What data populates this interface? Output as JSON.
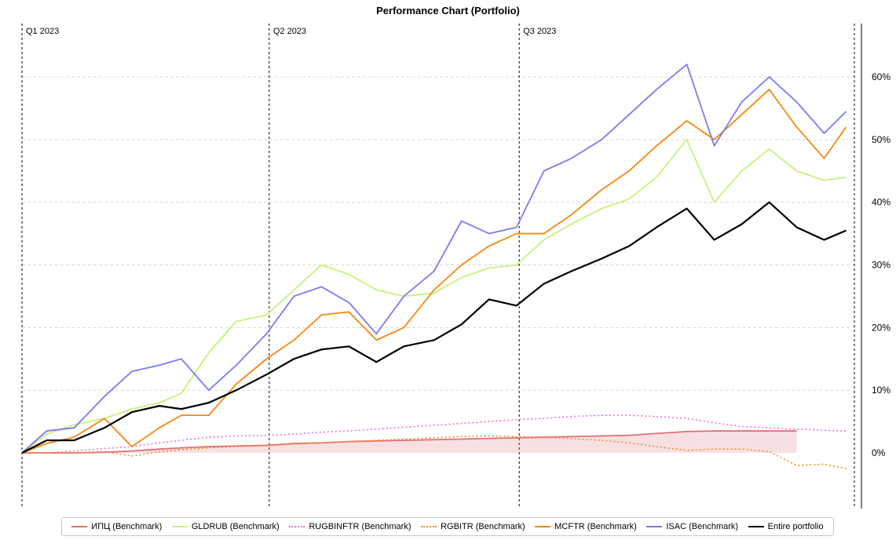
{
  "chart_data": {
    "type": "line",
    "title": "Performance Chart (Portfolio)",
    "xlabel": "",
    "ylabel": "",
    "x_range": [
      "2023-01-01",
      "2023-10-31"
    ],
    "ylim": [
      -8,
      67
    ],
    "y_axis_position": "right",
    "y_ticks": [
      {
        "value": 0,
        "label": "0%"
      },
      {
        "value": 10,
        "label": "10%"
      },
      {
        "value": 20,
        "label": "20%"
      },
      {
        "value": 30,
        "label": "30%"
      },
      {
        "value": 40,
        "label": "40%"
      },
      {
        "value": 50,
        "label": "50%"
      },
      {
        "value": 60,
        "label": "60%"
      }
    ],
    "grid": "horizontal dashed",
    "legend_position": "bottom",
    "quarter_markers": [
      {
        "date": "2023-01-01",
        "label": "Q1 2023"
      },
      {
        "date": "2023-04-01",
        "label": "Q2 2023"
      },
      {
        "date": "2023-07-01",
        "label": "Q3 2023"
      },
      {
        "date": "2023-10-31",
        "label": ""
      }
    ],
    "x": [
      "2023-01-01",
      "2023-01-10",
      "2023-01-20",
      "2023-01-31",
      "2023-02-10",
      "2023-02-20",
      "2023-02-28",
      "2023-03-10",
      "2023-03-20",
      "2023-03-31",
      "2023-04-10",
      "2023-04-20",
      "2023-04-30",
      "2023-05-10",
      "2023-05-20",
      "2023-05-31",
      "2023-06-10",
      "2023-06-20",
      "2023-06-30",
      "2023-07-10",
      "2023-07-20",
      "2023-07-31",
      "2023-08-10",
      "2023-08-20",
      "2023-08-31",
      "2023-09-10",
      "2023-09-20",
      "2023-09-30",
      "2023-10-10",
      "2023-10-20",
      "2023-10-28"
    ],
    "series": [
      {
        "name": "ИПЦ (Benchmark)",
        "color": "#e0707a",
        "style": "solid",
        "fill": true,
        "values": [
          0,
          0,
          0,
          0.1,
          0.3,
          0.6,
          0.8,
          1.0,
          1.1,
          1.2,
          1.5,
          1.6,
          1.8,
          1.9,
          2.0,
          2.1,
          2.2,
          2.3,
          2.4,
          2.5,
          2.6,
          2.7,
          2.8,
          3.1,
          3.4,
          3.5,
          3.5,
          3.5,
          3.5,
          null,
          null
        ]
      },
      {
        "name": "GLDRUB (Benchmark)",
        "color": "#c6f27a",
        "style": "solid",
        "values": [
          0,
          3.0,
          4.5,
          5.5,
          7.0,
          8.0,
          9.5,
          16.0,
          21.0,
          22.0,
          26.0,
          30.0,
          28.5,
          26.0,
          25.0,
          25.5,
          28.0,
          29.5,
          30.0,
          34.0,
          36.5,
          39.0,
          40.5,
          44.0,
          50.0,
          40.0,
          45.0,
          48.5,
          45.0,
          43.5,
          44.0
        ]
      },
      {
        "name": "RUGBINFTR (Benchmark)",
        "color": "#f26be0",
        "style": "dotted",
        "values": [
          0,
          0,
          0.3,
          0.7,
          1.0,
          1.6,
          2.0,
          2.5,
          2.7,
          2.8,
          3.0,
          3.3,
          3.5,
          3.8,
          4.1,
          4.4,
          4.7,
          5.0,
          5.3,
          5.5,
          5.8,
          6.0,
          6.0,
          5.8,
          5.5,
          4.8,
          4.2,
          4.0,
          3.8,
          3.6,
          3.5
        ]
      },
      {
        "name": "RGBITR (Benchmark)",
        "color": "#f08a1c",
        "style": "dotted",
        "values": [
          0,
          0,
          0,
          0.2,
          -0.5,
          0.2,
          0.5,
          0.8,
          1.0,
          1.2,
          1.4,
          1.6,
          1.8,
          2.0,
          2.2,
          2.4,
          2.6,
          2.7,
          2.6,
          2.5,
          2.3,
          2.0,
          1.6,
          1.0,
          0.4,
          0.6,
          0.6,
          0.2,
          -2.0,
          -1.8,
          -2.5
        ]
      },
      {
        "name": "MCFTR (Benchmark)",
        "color": "#f5870f",
        "style": "solid",
        "values": [
          0,
          1.5,
          2.5,
          5.5,
          1.0,
          4.0,
          6.0,
          6.0,
          11.0,
          15.0,
          18.0,
          22.0,
          22.5,
          18.0,
          20.0,
          26.0,
          30.0,
          33.0,
          35.0,
          35.0,
          38.0,
          42.0,
          45.0,
          49.0,
          53.0,
          50.0,
          54.0,
          58.0,
          52.0,
          47.0,
          52.0
        ]
      },
      {
        "name": "ISAC (Benchmark)",
        "color": "#7b7bf0",
        "style": "solid",
        "values": [
          0,
          3.5,
          4.0,
          9.0,
          13.0,
          14.0,
          15.0,
          10.0,
          14.0,
          19.0,
          25.0,
          26.5,
          24.0,
          19.0,
          25.0,
          29.0,
          37.0,
          35.0,
          36.0,
          45.0,
          47.0,
          50.0,
          54.0,
          58.0,
          62.0,
          49.0,
          56.0,
          60.0,
          56.0,
          51.0,
          54.5
        ]
      },
      {
        "name": "Entire portfolio",
        "color": "#000000",
        "style": "solid",
        "values": [
          0,
          2.0,
          2.0,
          4.0,
          6.5,
          7.5,
          7.0,
          8.0,
          10.0,
          12.5,
          15.0,
          16.5,
          17.0,
          14.5,
          17.0,
          18.0,
          20.5,
          24.5,
          23.5,
          27.0,
          29.0,
          31.0,
          33.0,
          36.0,
          39.0,
          34.0,
          36.5,
          40.0,
          36.0,
          34.0,
          35.5
        ]
      }
    ]
  }
}
